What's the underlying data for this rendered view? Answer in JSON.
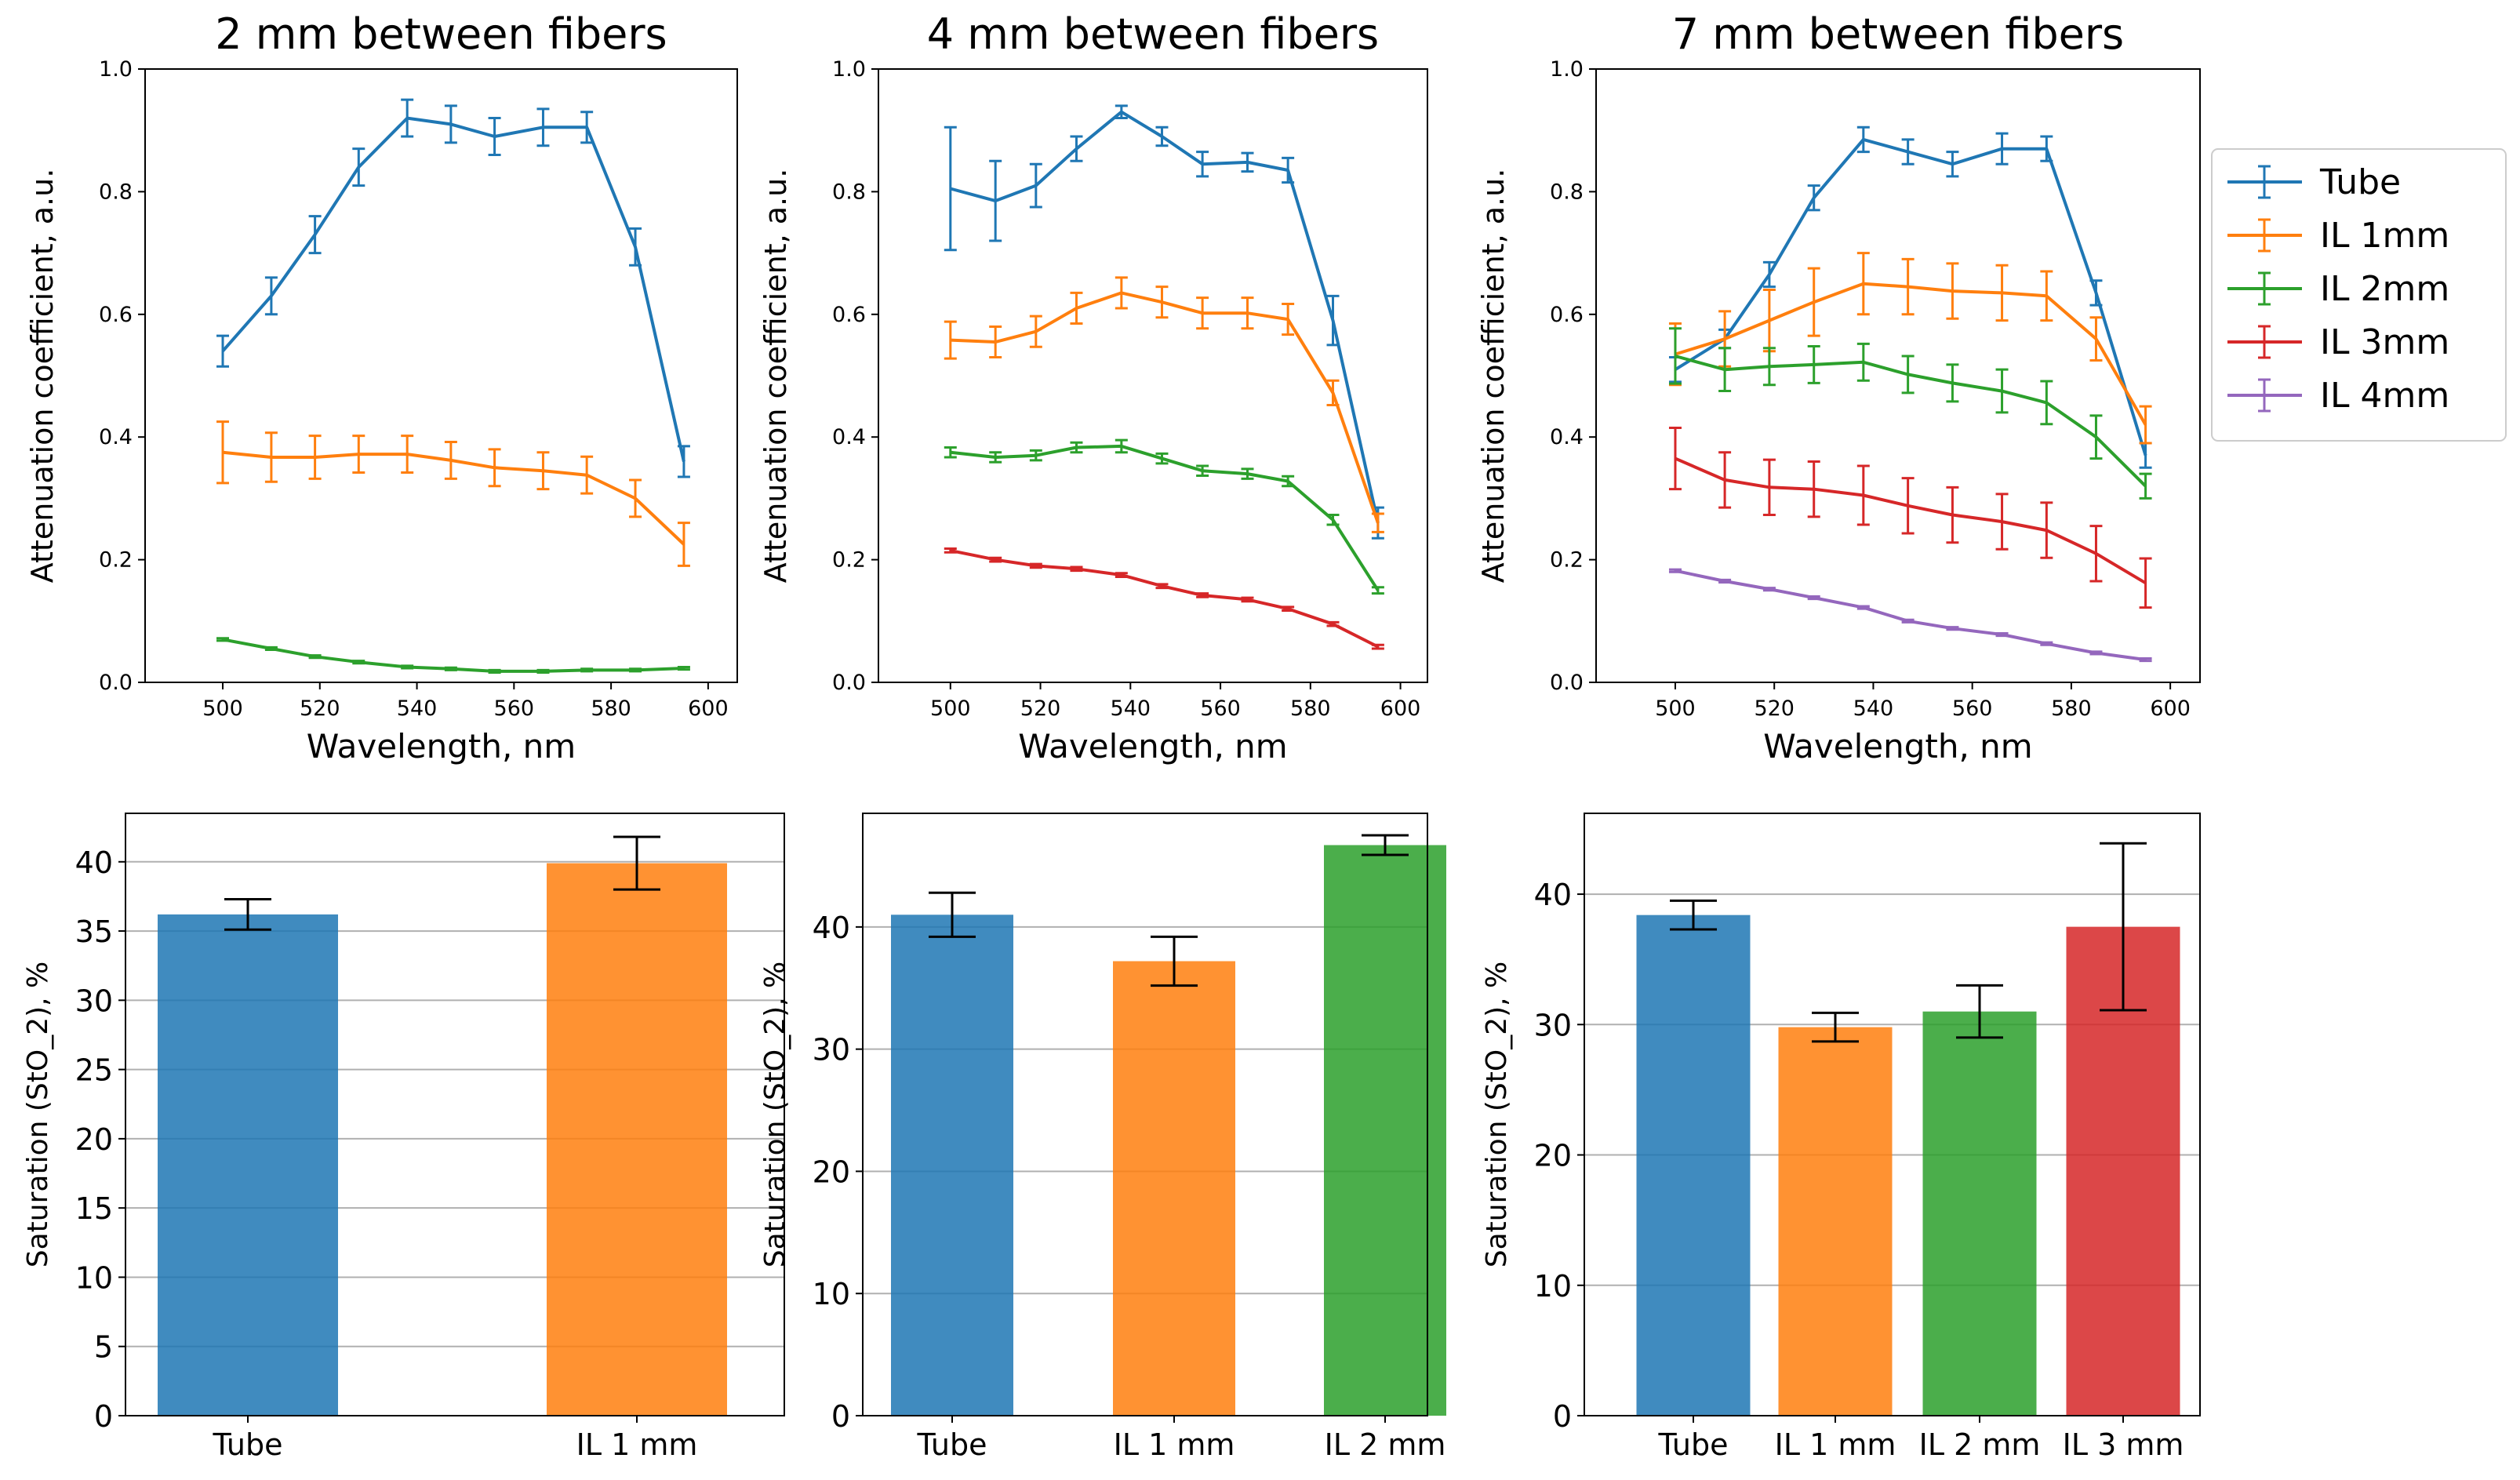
{
  "figure": {
    "legend_location": "right of top-right plot",
    "legend": [
      {
        "label": "Tube",
        "color": "#1f77b4"
      },
      {
        "label": "IL 1mm",
        "color": "#ff7f0e"
      },
      {
        "label": "IL 2mm",
        "color": "#2ca02c"
      },
      {
        "label": "IL 3mm",
        "color": "#d62728"
      },
      {
        "label": "IL 4mm",
        "color": "#9467bd"
      }
    ]
  },
  "chart_data": [
    {
      "type": "line",
      "title": "2 mm between fibers",
      "xlabel": "Wavelength, nm",
      "ylabel": "Attenuation coefficient, a.u.",
      "xlim": [
        484,
        606
      ],
      "ylim": [
        0.0,
        1.0
      ],
      "xticks": [
        "500",
        "520",
        "540",
        "560",
        "580",
        "600"
      ],
      "yticks": [
        "0.0",
        "0.2",
        "0.4",
        "0.6",
        "0.8",
        "1.0"
      ],
      "x": [
        500,
        510,
        519,
        528,
        538,
        547,
        556,
        566,
        575,
        585,
        595
      ],
      "series": [
        {
          "name": "Tube",
          "color": "#1f77b4",
          "values": [
            0.54,
            0.63,
            0.73,
            0.84,
            0.92,
            0.91,
            0.89,
            0.905,
            0.905,
            0.71,
            0.36
          ],
          "errors": [
            0.025,
            0.03,
            0.03,
            0.03,
            0.03,
            0.03,
            0.03,
            0.03,
            0.025,
            0.03,
            0.025
          ]
        },
        {
          "name": "IL 1mm",
          "color": "#ff7f0e",
          "values": [
            0.375,
            0.367,
            0.367,
            0.372,
            0.372,
            0.362,
            0.35,
            0.345,
            0.338,
            0.3,
            0.225
          ],
          "errors": [
            0.05,
            0.04,
            0.035,
            0.03,
            0.03,
            0.03,
            0.03,
            0.03,
            0.03,
            0.03,
            0.035
          ]
        },
        {
          "name": "IL 2mm",
          "color": "#2ca02c",
          "values": [
            0.07,
            0.055,
            0.042,
            0.033,
            0.025,
            0.022,
            0.018,
            0.018,
            0.02,
            0.02,
            0.023
          ],
          "errors": [
            0.002,
            0.002,
            0.002,
            0.002,
            0.002,
            0.002,
            0.002,
            0.002,
            0.002,
            0.002,
            0.002
          ]
        }
      ]
    },
    {
      "type": "line",
      "title": "4 mm between fibers",
      "xlabel": "Wavelength, nm",
      "ylabel": "Attenuation coefficient, a.u.",
      "xlim": [
        484,
        606
      ],
      "ylim": [
        0.0,
        1.0
      ],
      "xticks": [
        "500",
        "520",
        "540",
        "560",
        "580",
        "600"
      ],
      "yticks": [
        "0.0",
        "0.2",
        "0.4",
        "0.6",
        "0.8",
        "1.0"
      ],
      "x": [
        500,
        510,
        519,
        528,
        538,
        547,
        556,
        566,
        575,
        585,
        595
      ],
      "series": [
        {
          "name": "Tube",
          "color": "#1f77b4",
          "values": [
            0.805,
            0.785,
            0.81,
            0.87,
            0.93,
            0.89,
            0.845,
            0.848,
            0.835,
            0.59,
            0.26
          ],
          "errors": [
            0.1,
            0.065,
            0.035,
            0.02,
            0.01,
            0.015,
            0.02,
            0.015,
            0.02,
            0.04,
            0.025
          ]
        },
        {
          "name": "IL 1mm",
          "color": "#ff7f0e",
          "values": [
            0.558,
            0.555,
            0.572,
            0.61,
            0.635,
            0.62,
            0.602,
            0.602,
            0.592,
            0.472,
            0.26
          ],
          "errors": [
            0.03,
            0.025,
            0.025,
            0.025,
            0.025,
            0.025,
            0.025,
            0.025,
            0.025,
            0.02,
            0.015
          ]
        },
        {
          "name": "IL 2mm",
          "color": "#2ca02c",
          "values": [
            0.375,
            0.367,
            0.37,
            0.383,
            0.385,
            0.365,
            0.345,
            0.34,
            0.328,
            0.265,
            0.15
          ],
          "errors": [
            0.008,
            0.008,
            0.008,
            0.008,
            0.01,
            0.008,
            0.008,
            0.008,
            0.008,
            0.008,
            0.005
          ]
        },
        {
          "name": "IL 3mm",
          "color": "#d62728",
          "values": [
            0.215,
            0.2,
            0.19,
            0.185,
            0.175,
            0.157,
            0.142,
            0.135,
            0.12,
            0.095,
            0.058
          ],
          "errors": [
            0.003,
            0.003,
            0.003,
            0.003,
            0.003,
            0.003,
            0.003,
            0.003,
            0.003,
            0.003,
            0.003
          ]
        }
      ]
    },
    {
      "type": "line",
      "title": "7 mm between fibers",
      "xlabel": "Wavelength, nm",
      "ylabel": "Attenuation coefficient, a.u.",
      "xlim": [
        484,
        606
      ],
      "ylim": [
        0.0,
        1.0
      ],
      "xticks": [
        "500",
        "520",
        "540",
        "560",
        "580",
        "600"
      ],
      "yticks": [
        "0.0",
        "0.2",
        "0.4",
        "0.6",
        "0.8",
        "1.0"
      ],
      "x": [
        500,
        510,
        519,
        528,
        538,
        547,
        556,
        566,
        575,
        585,
        595
      ],
      "series": [
        {
          "name": "Tube",
          "color": "#1f77b4",
          "values": [
            0.51,
            0.56,
            0.665,
            0.79,
            0.885,
            0.865,
            0.845,
            0.87,
            0.87,
            0.635,
            0.37
          ],
          "errors": [
            0.02,
            0.015,
            0.02,
            0.02,
            0.02,
            0.02,
            0.02,
            0.025,
            0.02,
            0.02,
            0.02
          ]
        },
        {
          "name": "IL 1mm",
          "color": "#ff7f0e",
          "values": [
            0.535,
            0.56,
            0.59,
            0.62,
            0.65,
            0.645,
            0.638,
            0.635,
            0.63,
            0.56,
            0.42
          ],
          "errors": [
            0.05,
            0.045,
            0.05,
            0.055,
            0.05,
            0.045,
            0.045,
            0.045,
            0.04,
            0.035,
            0.03
          ]
        },
        {
          "name": "IL 2mm",
          "color": "#2ca02c",
          "values": [
            0.532,
            0.51,
            0.515,
            0.518,
            0.522,
            0.502,
            0.488,
            0.475,
            0.456,
            0.4,
            0.32
          ],
          "errors": [
            0.045,
            0.035,
            0.03,
            0.03,
            0.03,
            0.03,
            0.03,
            0.035,
            0.035,
            0.035,
            0.02
          ]
        },
        {
          "name": "IL 3mm",
          "color": "#d62728",
          "values": [
            0.365,
            0.33,
            0.318,
            0.315,
            0.305,
            0.288,
            0.273,
            0.262,
            0.248,
            0.21,
            0.162
          ],
          "errors": [
            0.05,
            0.045,
            0.045,
            0.045,
            0.048,
            0.045,
            0.045,
            0.045,
            0.045,
            0.045,
            0.04
          ]
        },
        {
          "name": "IL 4mm",
          "color": "#9467bd",
          "values": [
            0.182,
            0.165,
            0.152,
            0.138,
            0.122,
            0.1,
            0.088,
            0.078,
            0.063,
            0.048,
            0.037
          ],
          "errors": [
            0.002,
            0.002,
            0.002,
            0.002,
            0.002,
            0.002,
            0.002,
            0.002,
            0.002,
            0.002,
            0.002
          ]
        }
      ]
    },
    {
      "type": "bar",
      "ylabel": "Saturation (StO_2), %",
      "ylim": [
        0,
        43.5
      ],
      "yticks": [
        0,
        5,
        10,
        15,
        20,
        25,
        30,
        35,
        40
      ],
      "categories": [
        "Tube",
        "IL 1 mm"
      ],
      "values": [
        36.2,
        39.9
      ],
      "errors": [
        1.1,
        1.9
      ],
      "colors": [
        "#1f77b4",
        "#ff7f0e"
      ],
      "grid": true
    },
    {
      "type": "bar",
      "ylabel": "Saturation (StO_2), %",
      "ylim": [
        0,
        49.3
      ],
      "yticks": [
        0,
        10,
        20,
        30,
        40
      ],
      "categories": [
        "Tube",
        "IL 1 mm",
        "IL 2 mm"
      ],
      "values": [
        41.0,
        37.2,
        46.7
      ],
      "errors": [
        1.8,
        2.0,
        0.8
      ],
      "colors": [
        "#1f77b4",
        "#ff7f0e",
        "#2ca02c"
      ],
      "grid": true
    },
    {
      "type": "bar",
      "ylabel": "Saturation (StO_2), %",
      "ylim": [
        0,
        46.2
      ],
      "yticks": [
        0,
        10,
        20,
        30,
        40
      ],
      "categories": [
        "Tube",
        "IL 1 mm",
        "IL 2 mm",
        "IL 3 mm"
      ],
      "values": [
        38.4,
        29.8,
        31.0,
        37.5
      ],
      "errors": [
        1.1,
        1.1,
        2.0,
        6.4
      ],
      "colors": [
        "#1f77b4",
        "#ff7f0e",
        "#2ca02c",
        "#d62728"
      ],
      "grid": true
    }
  ]
}
